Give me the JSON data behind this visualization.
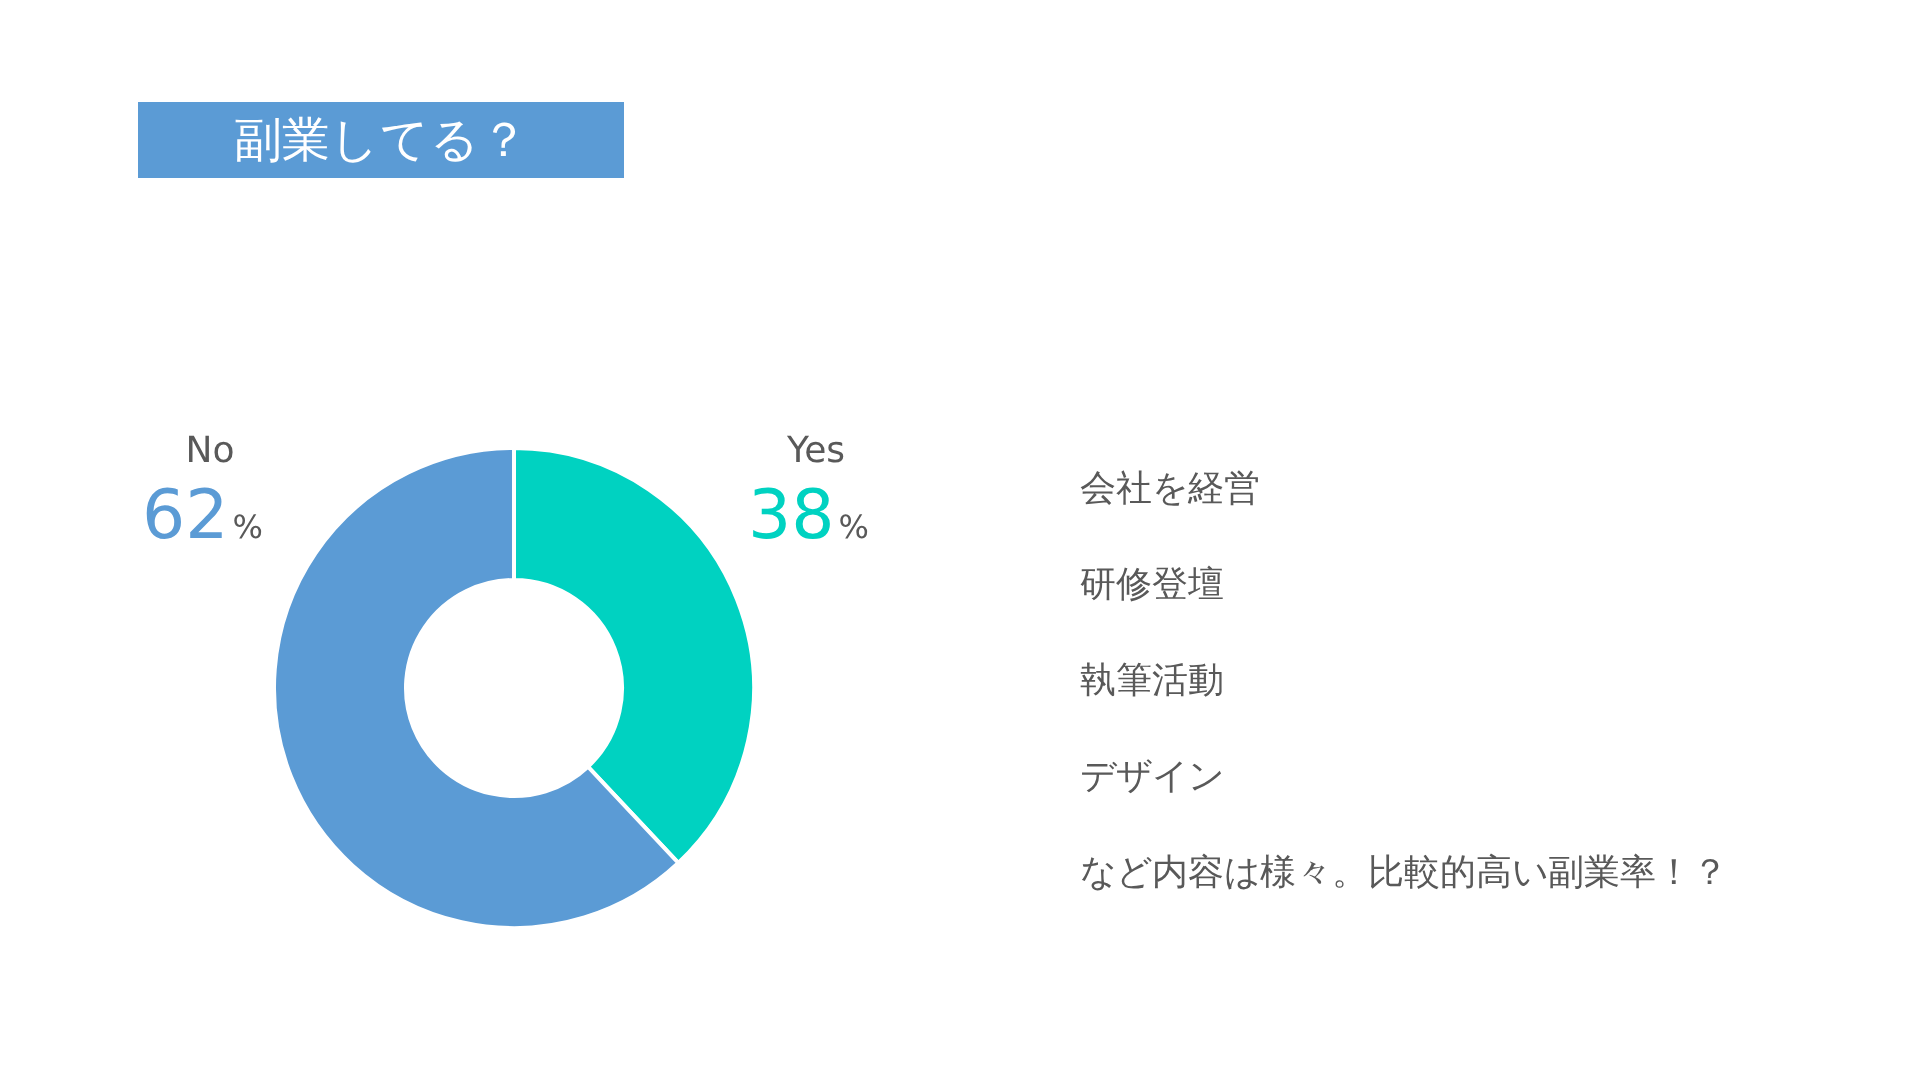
{
  "chart_data": {
    "type": "donut",
    "title": "副業してる？",
    "categories": [
      "Yes",
      "No"
    ],
    "values": [
      38,
      62
    ],
    "colors": [
      "#00d2c1",
      "#5b9bd5"
    ],
    "value_labels": [
      "38%",
      "62%"
    ],
    "annotations": [
      "会社を経営",
      "研修登壇",
      "執筆活動",
      "デザイン",
      "など内容は様々。比較的高い副業率！？"
    ]
  }
}
